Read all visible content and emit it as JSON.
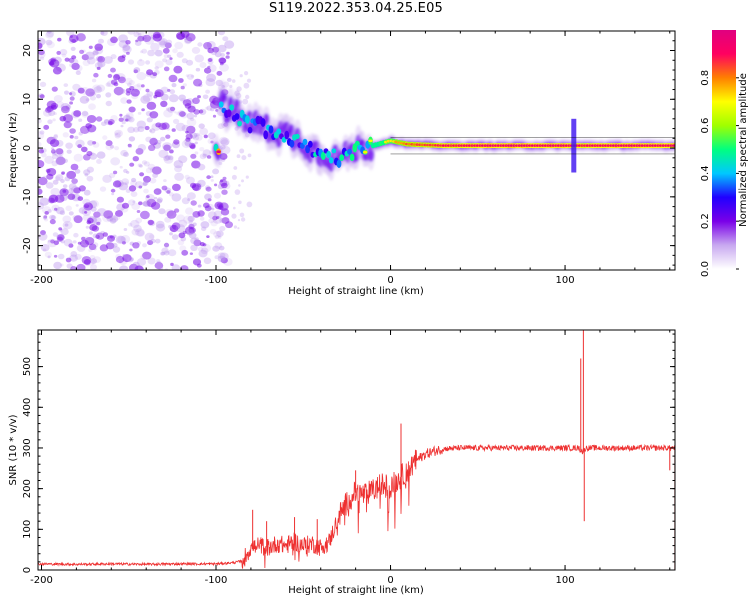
{
  "title": "S119.2022.353.04.25.E05",
  "chart_data": [
    {
      "type": "heatmap",
      "xlabel": "Height of straight line (km)",
      "ylabel": "Frequency (Hz)",
      "xlim": [
        -202,
        163
      ],
      "ylim": [
        -25,
        24
      ],
      "xticks": [
        -200,
        -100,
        0,
        100
      ],
      "yticks": [
        -20,
        -10,
        0,
        10,
        20
      ],
      "colorbar": {
        "label": "Normalized spectral amplitude",
        "range": [
          0,
          1
        ],
        "ticks": [
          "0.0",
          "0.2",
          "0.4",
          "0.6",
          "0.8"
        ],
        "colors": [
          "#ffffff",
          "#c8a8f0",
          "#7a00e8",
          "#2000ff",
          "#00c8ff",
          "#00ff80",
          "#a0ff00",
          "#ffff00",
          "#ff8000",
          "#ff0060",
          "#e00080"
        ]
      },
      "noise_region": {
        "x": [
          -202,
          -92
        ],
        "level": 0.15
      },
      "ridge": [
        {
          "x": -98,
          "freq": 9.5,
          "amp": 0.45
        },
        {
          "x": -90,
          "freq": 7.0,
          "amp": 0.5
        },
        {
          "x": -80,
          "freq": 5.0,
          "amp": 0.5
        },
        {
          "x": -70,
          "freq": 4.0,
          "amp": 0.5
        },
        {
          "x": -60,
          "freq": 3.0,
          "amp": 0.5
        },
        {
          "x": -50,
          "freq": 1.0,
          "amp": 0.5
        },
        {
          "x": -40,
          "freq": -1.0,
          "amp": 0.55
        },
        {
          "x": -30,
          "freq": -2.0,
          "amp": 0.55
        },
        {
          "x": -20,
          "freq": -0.5,
          "amp": 0.6
        },
        {
          "x": -10,
          "freq": 0.5,
          "amp": 0.65
        },
        {
          "x": 0,
          "freq": 1.5,
          "amp": 0.75
        },
        {
          "x": 10,
          "freq": 0.8,
          "amp": 0.85
        },
        {
          "x": 30,
          "freq": 0.5,
          "amp": 0.92
        },
        {
          "x": 60,
          "freq": 0.5,
          "amp": 0.98
        },
        {
          "x": 90,
          "freq": 0.5,
          "amp": 0.98
        },
        {
          "x": 110,
          "freq": 0.5,
          "amp": 0.95
        },
        {
          "x": 140,
          "freq": 0.5,
          "amp": 0.98
        },
        {
          "x": 163,
          "freq": 0.5,
          "amp": 0.98
        }
      ],
      "spike": {
        "x": 105,
        "freq_range": [
          -5,
          6
        ]
      }
    },
    {
      "type": "line",
      "xlabel": "Height of straight line (km)",
      "ylabel": "SNR (10 * v/v)",
      "xlim": [
        -202,
        163
      ],
      "ylim": [
        0,
        590
      ],
      "xticks": [
        -200,
        -100,
        0,
        100
      ],
      "yticks": [
        0,
        100,
        200,
        300,
        400,
        500
      ],
      "color": "#ee3030",
      "series": [
        {
          "x": [
            -202,
            -180,
            -160,
            -140,
            -120,
            -100,
            -90,
            -85,
            -80,
            -75,
            -70,
            -65,
            -60,
            -55,
            -50,
            -45,
            -40,
            -35,
            -30,
            -25,
            -20,
            -15,
            -10,
            -5,
            0,
            5,
            10,
            15,
            20,
            25,
            30,
            40,
            50,
            60,
            70,
            80,
            90,
            100,
            108,
            110,
            112,
            120,
            130,
            140,
            150,
            158,
            163
          ],
          "y": [
            15,
            14,
            15,
            14,
            15,
            15,
            18,
            22,
            55,
            60,
            55,
            65,
            60,
            70,
            60,
            65,
            55,
            70,
            130,
            165,
            190,
            185,
            195,
            210,
            205,
            225,
            245,
            270,
            285,
            292,
            298,
            300,
            300,
            300,
            300,
            300,
            300,
            300,
            300,
            290,
            300,
            300,
            300,
            300,
            300,
            300,
            300
          ]
        }
      ],
      "spikes": [
        {
          "x": -79,
          "y": 148
        },
        {
          "x": -71,
          "y": 120
        },
        {
          "x": -55,
          "y": 130
        },
        {
          "x": -42,
          "y": 125
        },
        {
          "x": -20,
          "y": 245
        },
        {
          "x": 6,
          "y": 360
        },
        {
          "x": 109,
          "y": 520
        },
        {
          "x": 110.5,
          "y": 590
        },
        {
          "x": 111,
          "y": 120
        },
        {
          "x": 160,
          "y": 245
        }
      ]
    }
  ]
}
